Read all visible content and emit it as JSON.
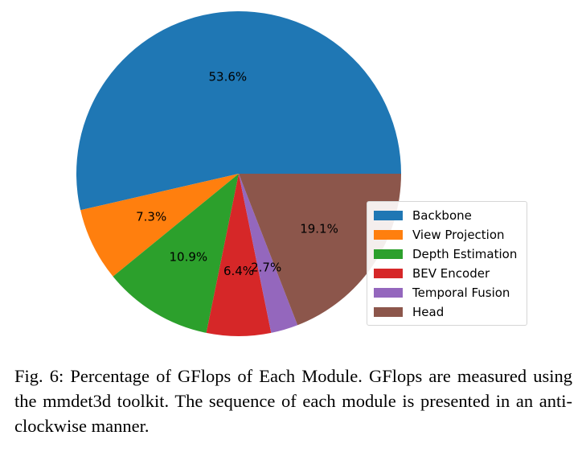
{
  "chart_data": {
    "type": "pie",
    "direction": "anti-clockwise",
    "start": "3 o'clock",
    "categories": [
      "Backbone",
      "View Projection",
      "Depth Estimation",
      "BEV Encoder",
      "Temporal Fusion",
      "Head"
    ],
    "values": [
      53.6,
      7.3,
      10.9,
      6.4,
      2.7,
      19.1
    ],
    "labels": [
      "53.6%",
      "7.3%",
      "10.9%",
      "6.4%",
      "2.7%",
      "19.1%"
    ],
    "colors": [
      "#1f77b4",
      "#ff7f0e",
      "#2ca02c",
      "#d62728",
      "#9467bd",
      "#8c564b"
    ],
    "legend_placement": "lower-right"
  },
  "caption": "Fig. 6: Percentage of GFlops of Each Module. GFlops are measured using the mmdet3d toolkit. The sequence of each module is presented in an anti-clockwise manner."
}
